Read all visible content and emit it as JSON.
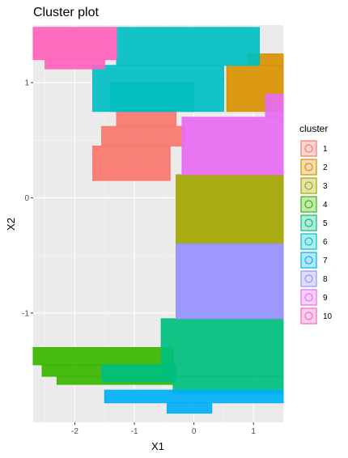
{
  "chart_data": {
    "type": "scatter",
    "title": "Cluster plot",
    "xlabel": "X1",
    "ylabel": "X2",
    "xlim": [
      -2.7,
      1.5
    ],
    "ylim": [
      -1.95,
      1.5
    ],
    "x_ticks": [
      -2,
      -1,
      0,
      1
    ],
    "y_ticks": [
      -1,
      0,
      1
    ],
    "x_tick_labels": [
      "-2",
      "-1",
      "0",
      "1"
    ],
    "y_tick_labels": [
      "-1",
      "0",
      "1"
    ],
    "grid": true,
    "legend": {
      "title": "cluster",
      "placement": "right",
      "entries": [
        "1",
        "2",
        "3",
        "4",
        "5",
        "6",
        "7",
        "8",
        "9",
        "10"
      ]
    },
    "series": [
      {
        "name": "1",
        "color": "#F8766D",
        "regions": [
          {
            "x": [
              -1.7,
              -0.4
            ],
            "y": [
              0.15,
              0.45
            ]
          },
          {
            "x": [
              -1.55,
              -0.15
            ],
            "y": [
              0.45,
              0.62
            ]
          },
          {
            "x": [
              -1.3,
              -0.3
            ],
            "y": [
              0.62,
              0.75
            ]
          }
        ]
      },
      {
        "name": "2",
        "color": "#D89000",
        "regions": [
          {
            "x": [
              0.55,
              1.5
            ],
            "y": [
              0.75,
              1.15
            ]
          },
          {
            "x": [
              0.9,
              1.5
            ],
            "y": [
              1.15,
              1.25
            ]
          }
        ]
      },
      {
        "name": "3",
        "color": "#A3A500",
        "regions": [
          {
            "x": [
              -0.3,
              1.5
            ],
            "y": [
              -0.4,
              0.2
            ]
          }
        ]
      },
      {
        "name": "4",
        "color": "#39B600",
        "regions": [
          {
            "x": [
              -2.7,
              -0.35
            ],
            "y": [
              -1.45,
              -1.3
            ]
          },
          {
            "x": [
              -2.55,
              -0.35
            ],
            "y": [
              -1.55,
              -1.45
            ]
          },
          {
            "x": [
              -2.3,
              -0.35
            ],
            "y": [
              -1.62,
              -1.55
            ]
          }
        ]
      },
      {
        "name": "5",
        "color": "#00BF7D",
        "regions": [
          {
            "x": [
              -0.55,
              1.5
            ],
            "y": [
              -1.55,
              -1.05
            ]
          },
          {
            "x": [
              -0.35,
              1.5
            ],
            "y": [
              -1.7,
              -1.55
            ]
          },
          {
            "x": [
              -1.55,
              -0.3
            ],
            "y": [
              -1.6,
              -1.45
            ]
          },
          {
            "x": [
              -1.4,
              0.0
            ],
            "y": [
              0.75,
              1.0
            ]
          }
        ]
      },
      {
        "name": "6",
        "color": "#00BFC4",
        "regions": [
          {
            "x": [
              -1.7,
              0.5
            ],
            "y": [
              0.75,
              1.15
            ]
          },
          {
            "x": [
              -1.3,
              1.1
            ],
            "y": [
              1.15,
              1.48
            ]
          }
        ]
      },
      {
        "name": "7",
        "color": "#00B0F6",
        "regions": [
          {
            "x": [
              -1.5,
              1.5
            ],
            "y": [
              -1.78,
              -1.67
            ]
          },
          {
            "x": [
              -0.45,
              0.3
            ],
            "y": [
              -1.87,
              -1.78
            ]
          }
        ]
      },
      {
        "name": "8",
        "color": "#9590FF",
        "regions": [
          {
            "x": [
              -0.3,
              1.5
            ],
            "y": [
              -1.05,
              -0.4
            ]
          }
        ]
      },
      {
        "name": "9",
        "color": "#E76BF3",
        "regions": [
          {
            "x": [
              -0.2,
              1.5
            ],
            "y": [
              0.2,
              0.7
            ]
          },
          {
            "x": [
              1.2,
              1.5
            ],
            "y": [
              0.7,
              0.9
            ]
          }
        ]
      },
      {
        "name": "10",
        "color": "#FF62BC",
        "regions": [
          {
            "x": [
              -2.7,
              -1.3
            ],
            "y": [
              1.2,
              1.48
            ]
          },
          {
            "x": [
              -2.5,
              -1.5
            ],
            "y": [
              1.12,
              1.2
            ]
          }
        ]
      }
    ]
  }
}
